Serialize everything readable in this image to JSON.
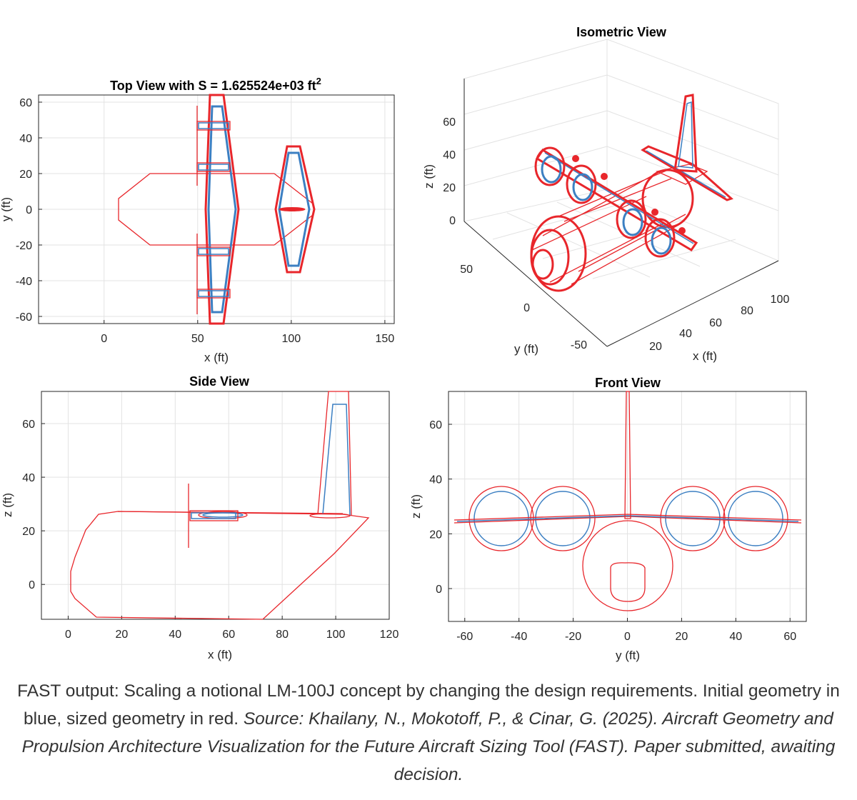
{
  "chart_data": [
    {
      "type": "line",
      "title_main": "Top View with S = 1.625524e+03 ft",
      "title_sup": "2",
      "xlabel": "x (ft)",
      "ylabel": "y (ft)",
      "xlim": [
        -35,
        155
      ],
      "ylim": [
        -64,
        64
      ],
      "xticks": [
        0,
        50,
        100,
        150
      ],
      "yticks": [
        60,
        40,
        20,
        0,
        -20,
        -40,
        -60
      ],
      "grid": true,
      "series_colors": {
        "initial": "#3c7fc2",
        "sized": "#e8262b"
      }
    },
    {
      "type": "line",
      "title": "Isometric View",
      "xlabel": "x (ft)",
      "ylabel": "y (ft)",
      "zlabel": "z (ft)",
      "xticks": [
        20,
        40,
        60,
        80,
        100
      ],
      "yticks": [
        50,
        0,
        -50
      ],
      "zticks": [
        60,
        40,
        20,
        0
      ],
      "grid": true
    },
    {
      "type": "line",
      "title": "Side View",
      "xlabel": "x (ft)",
      "ylabel": "z (ft)",
      "xlim": [
        -10,
        120
      ],
      "ylim": [
        -13,
        72
      ],
      "xticks": [
        0,
        20,
        40,
        60,
        80,
        100,
        120
      ],
      "yticks": [
        60,
        40,
        20,
        0
      ],
      "grid": true
    },
    {
      "type": "line",
      "title": "Front View",
      "xlabel": "y (ft)",
      "ylabel": "z (ft)",
      "xlim": [
        -66,
        66
      ],
      "ylim": [
        -12,
        72
      ],
      "xticks": [
        -60,
        -40,
        -20,
        0,
        20,
        40,
        60
      ],
      "yticks": [
        60,
        40,
        20,
        0
      ],
      "grid": true
    }
  ],
  "caption": {
    "main": "FAST output: Scaling a notional LM-100J concept by changing the design requirements. Initial geometry in blue, sized geometry in red.",
    "source": "Source: Khailany, N., Mokotoff, P., & Cinar, G. (2025). Aircraft Geometry and Propulsion Architecture Visualization for the Future Aircraft Sizing Tool (FAST). Paper submitted, awaiting decision."
  }
}
